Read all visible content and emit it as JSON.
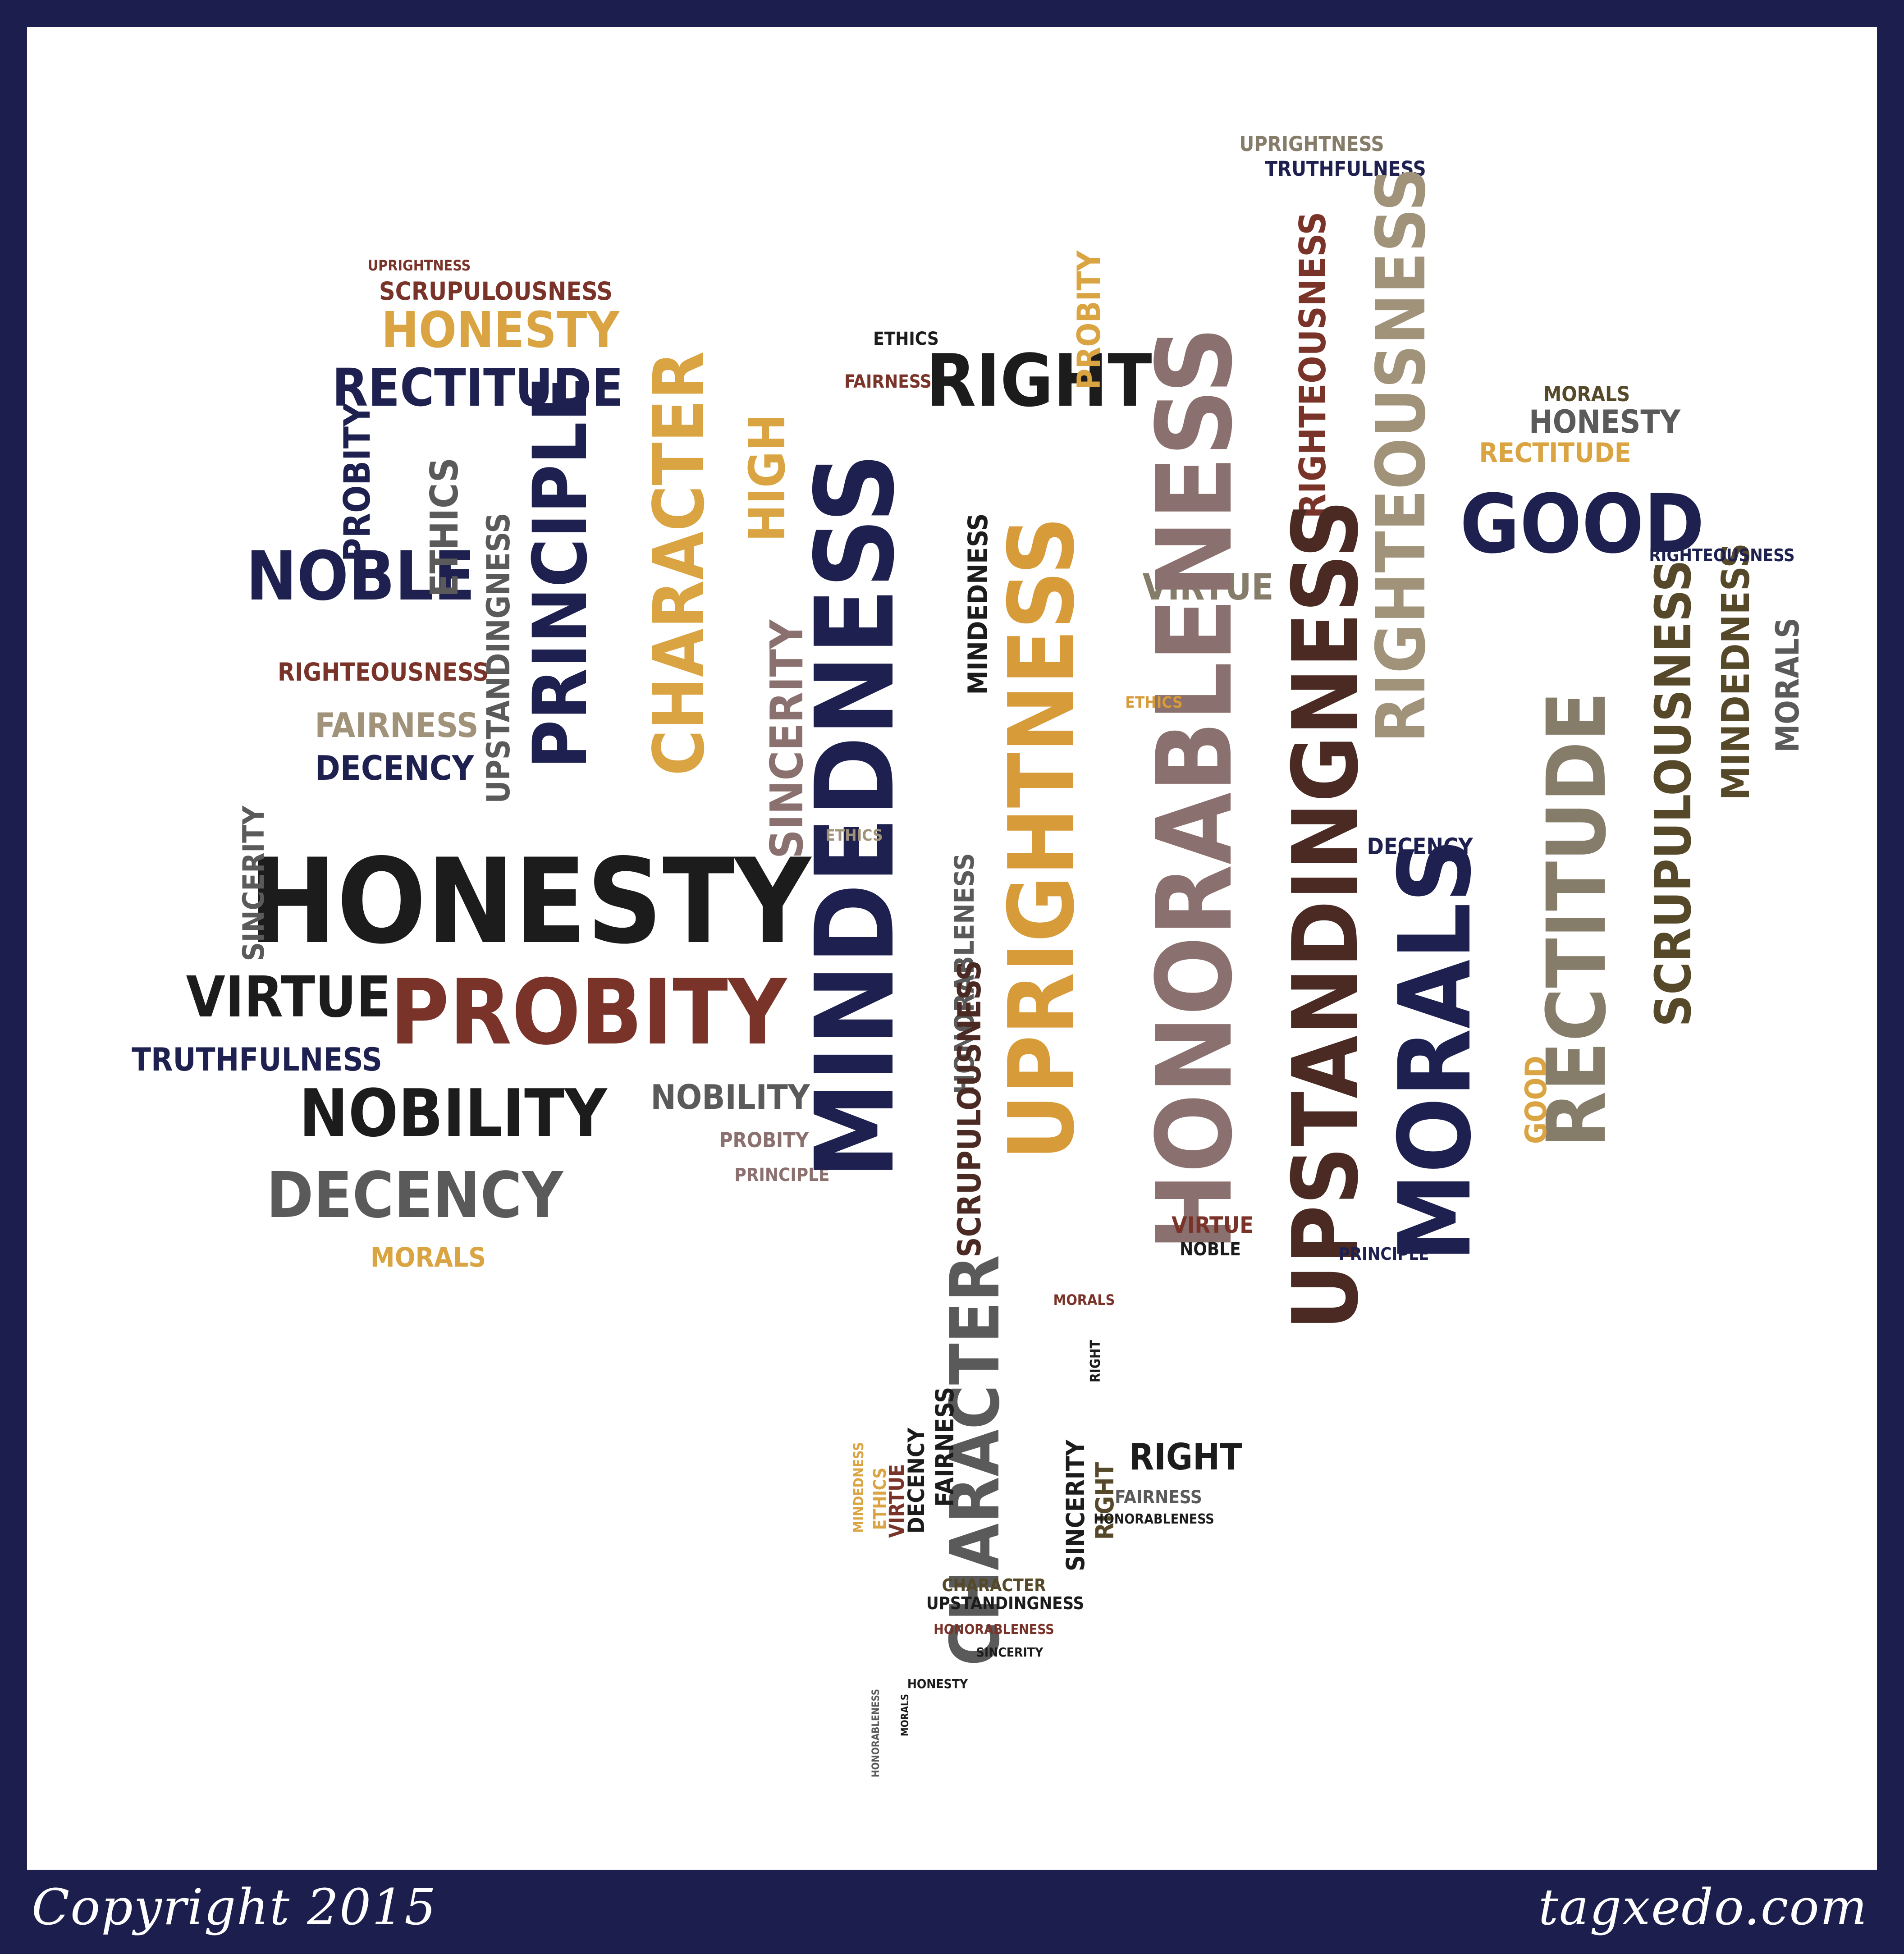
{
  "palette": {
    "frame": "#1c1f4d",
    "canvas": "#ffffff",
    "navy": "#1e2150",
    "black": "#1c1c1c",
    "gold": "#d9a441",
    "rust": "#7a3329",
    "mauve": "#8a706e",
    "taupe": "#857c6a",
    "brown": "#4a2a22",
    "khaki": "#a0937a",
    "grey": "#5a5a5a",
    "orange": "#d89b3a",
    "olive": "#55492a"
  },
  "footer": {
    "copyright": "Copyright 2015",
    "site": "tagxedo.com"
  },
  "words": [
    {
      "text": "UPRIGHTNESS",
      "color": "rust"
    },
    {
      "text": "SCRUPULOUSNESS",
      "color": "rust"
    },
    {
      "text": "HONESTY",
      "color": "gold"
    },
    {
      "text": "RECTITUDE",
      "color": "navy"
    },
    {
      "text": "NOBLE",
      "color": "navy"
    },
    {
      "text": "PROBITY",
      "color": "navy"
    },
    {
      "text": "ETHICS",
      "color": "grey"
    },
    {
      "text": "PRINCIPLE",
      "color": "navy"
    },
    {
      "text": "CHARACTER",
      "color": "gold"
    },
    {
      "text": "HIGH",
      "color": "gold"
    },
    {
      "text": "SINCERITY",
      "color": "mauve"
    },
    {
      "text": "UPSTANDINGNESS",
      "color": "grey"
    },
    {
      "text": "RIGHTEOUSNESS",
      "color": "rust"
    },
    {
      "text": "FAIRNESS",
      "color": "khaki"
    },
    {
      "text": "DECENCY",
      "color": "navy"
    },
    {
      "text": "HONESTY",
      "color": "black"
    },
    {
      "text": "SINCERITY",
      "color": "grey"
    },
    {
      "text": "VIRTUE",
      "color": "black"
    },
    {
      "text": "PROBITY",
      "color": "rust"
    },
    {
      "text": "TRUTHFULNESS",
      "color": "navy"
    },
    {
      "text": "NOBILITY",
      "color": "black"
    },
    {
      "text": "DECENCY",
      "color": "grey"
    },
    {
      "text": "MORALS",
      "color": "gold"
    },
    {
      "text": "NOBILITY",
      "color": "grey"
    },
    {
      "text": "PROBITY",
      "color": "mauve"
    },
    {
      "text": "PRINCIPLE",
      "color": "mauve"
    },
    {
      "text": "MINDEDNESS",
      "color": "navy"
    },
    {
      "text": "FAIRNESS",
      "color": "rust"
    },
    {
      "text": "ETHICS",
      "color": "black"
    },
    {
      "text": "RIGHT",
      "color": "black"
    },
    {
      "text": "MINDEDNESS",
      "color": "black"
    },
    {
      "text": "HONORABLENESS",
      "color": "grey"
    },
    {
      "text": "UPRIGHTNESS",
      "color": "orange"
    },
    {
      "text": "SCRUPULOUSNESS",
      "color": "brown"
    },
    {
      "text": "PROBITY",
      "color": "gold"
    },
    {
      "text": "VIRTUE",
      "color": "taupe"
    },
    {
      "text": "HONORABLENESS",
      "color": "mauve"
    },
    {
      "text": "UPRIGHTNESS",
      "color": "taupe"
    },
    {
      "text": "TRUTHFULNESS",
      "color": "navy"
    },
    {
      "text": "RIGHTEOUSNESS",
      "color": "rust"
    },
    {
      "text": "UPSTANDINGNESS",
      "color": "brown"
    },
    {
      "text": "RIGHTEOUSNESS",
      "color": "khaki"
    },
    {
      "text": "MORALS",
      "color": "navy"
    },
    {
      "text": "GOOD",
      "color": "navy"
    },
    {
      "text": "HONESTY",
      "color": "grey"
    },
    {
      "text": "RECTITUDE",
      "color": "gold"
    },
    {
      "text": "MORALS",
      "color": "olive"
    },
    {
      "text": "RECTITUDE",
      "color": "taupe"
    },
    {
      "text": "SCRUPULOUSNESS",
      "color": "olive"
    },
    {
      "text": "MINDEDNESS",
      "color": "olive"
    },
    {
      "text": "MORALS",
      "color": "grey"
    },
    {
      "text": "RIGHTEOUSNESS",
      "color": "navy"
    },
    {
      "text": "DECENCY",
      "color": "navy"
    },
    {
      "text": "VIRTUE",
      "color": "rust"
    },
    {
      "text": "NOBLE",
      "color": "black"
    },
    {
      "text": "PRINCIPLE",
      "color": "navy"
    },
    {
      "text": "GOOD",
      "color": "gold"
    },
    {
      "text": "ETHICS",
      "color": "orange"
    },
    {
      "text": "ETHICS",
      "color": "khaki"
    },
    {
      "text": "MORALS",
      "color": "rust"
    },
    {
      "text": "RIGHT",
      "color": "black"
    },
    {
      "text": "CHARACTER",
      "color": "grey"
    },
    {
      "text": "FAIRNESS",
      "color": "black"
    },
    {
      "text": "DECENCY",
      "color": "black"
    },
    {
      "text": "VIRTUE",
      "color": "rust"
    },
    {
      "text": "ETHICS",
      "color": "gold"
    },
    {
      "text": "MINDEDNESS",
      "color": "gold"
    },
    {
      "text": "SINCERITY",
      "color": "black"
    },
    {
      "text": "RIGHT",
      "color": "olive"
    },
    {
      "text": "RIGHT",
      "color": "black"
    },
    {
      "text": "FAIRNESS",
      "color": "grey"
    },
    {
      "text": "HONORABLENESS",
      "color": "black"
    },
    {
      "text": "CHARACTER",
      "color": "olive"
    },
    {
      "text": "UPSTANDINGNESS",
      "color": "black"
    },
    {
      "text": "HONORABLENESS",
      "color": "rust"
    },
    {
      "text": "SINCERITY",
      "color": "black"
    },
    {
      "text": "HONESTY",
      "color": "black"
    },
    {
      "text": "HONORABLENESS",
      "color": "grey"
    },
    {
      "text": "MORALS",
      "color": "black"
    }
  ]
}
